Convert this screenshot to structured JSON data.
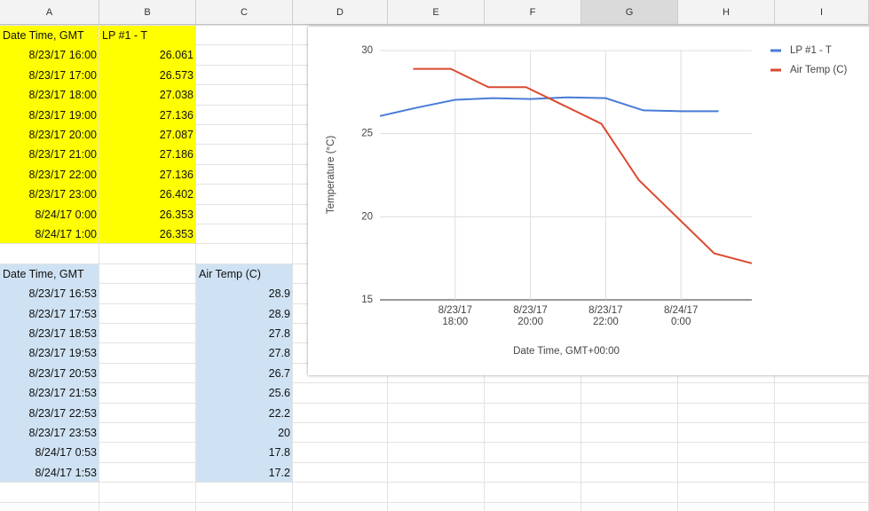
{
  "sheet": {
    "columns": [
      "A",
      "B",
      "C",
      "D",
      "E",
      "F",
      "G",
      "H",
      "I"
    ],
    "table1": {
      "header": [
        "Date Time, GMT",
        "LP #1 - T"
      ],
      "rows": [
        [
          "8/23/17 16:00",
          "26.061"
        ],
        [
          "8/23/17 17:00",
          "26.573"
        ],
        [
          "8/23/17 18:00",
          "27.038"
        ],
        [
          "8/23/17 19:00",
          "27.136"
        ],
        [
          "8/23/17 20:00",
          "27.087"
        ],
        [
          "8/23/17 21:00",
          "27.186"
        ],
        [
          "8/23/17 22:00",
          "27.136"
        ],
        [
          "8/23/17 23:00",
          "26.402"
        ],
        [
          "8/24/17 0:00",
          "26.353"
        ],
        [
          "8/24/17 1:00",
          "26.353"
        ]
      ]
    },
    "table2": {
      "header": [
        "Date Time, GMT",
        "Air Temp (C)"
      ],
      "rows": [
        [
          "8/23/17 16:53",
          "28.9"
        ],
        [
          "8/23/17 17:53",
          "28.9"
        ],
        [
          "8/23/17 18:53",
          "27.8"
        ],
        [
          "8/23/17 19:53",
          "27.8"
        ],
        [
          "8/23/17 20:53",
          "26.7"
        ],
        [
          "8/23/17 21:53",
          "25.6"
        ],
        [
          "8/23/17 22:53",
          "22.2"
        ],
        [
          "8/23/17 23:53",
          "20"
        ],
        [
          "8/24/17 0:53",
          "17.8"
        ],
        [
          "8/24/17 1:53",
          "17.2"
        ]
      ]
    }
  },
  "chart": {
    "type": "line",
    "x_label": "Date Time, GMT+00:00",
    "y_label": "Temperature (°C)",
    "xlim": [
      "8/23/17 16:00",
      "8/24/17 1:53"
    ],
    "xticks": [
      "8/23/17 18:00",
      "8/23/17 20:00",
      "8/23/17 22:00",
      "8/24/17 0:00"
    ],
    "ylim": [
      15,
      30
    ],
    "yticks": [
      15,
      20,
      25,
      30
    ],
    "grid": true,
    "series": [
      {
        "name": "LP #1 - T",
        "color": "#4a7bd6",
        "x": [
          "8/23/17 16:00",
          "8/23/17 17:00",
          "8/23/17 18:00",
          "8/23/17 19:00",
          "8/23/17 20:00",
          "8/23/17 21:00",
          "8/23/17 22:00",
          "8/23/17 23:00",
          "8/24/17 0:00",
          "8/24/17 1:00"
        ],
        "values": [
          26.061,
          26.573,
          27.038,
          27.136,
          27.087,
          27.186,
          27.136,
          26.402,
          26.353,
          26.353
        ]
      },
      {
        "name": "Air Temp (C)",
        "color": "#db4a2f",
        "x": [
          "8/23/17 16:53",
          "8/23/17 17:53",
          "8/23/17 18:53",
          "8/23/17 19:53",
          "8/23/17 20:53",
          "8/23/17 21:53",
          "8/23/17 22:53",
          "8/23/17 23:53",
          "8/24/17 0:53",
          "8/24/17 1:53"
        ],
        "values": [
          28.9,
          28.9,
          27.8,
          27.8,
          26.7,
          25.6,
          22.2,
          20,
          17.8,
          17.2
        ]
      }
    ]
  }
}
